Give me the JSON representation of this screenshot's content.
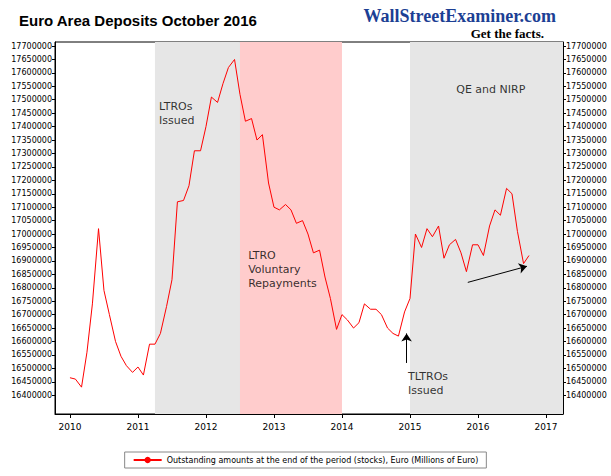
{
  "chart_data": {
    "type": "line",
    "title": "Euro Area Deposits October 2016",
    "logo_text": "WallStreetExaminer.com",
    "logo_tagline": "Get the facts.",
    "x": [
      2010.0,
      2010.08,
      2010.17,
      2010.25,
      2010.33,
      2010.42,
      2010.5,
      2010.58,
      2010.67,
      2010.75,
      2010.83,
      2010.92,
      2011.0,
      2011.08,
      2011.17,
      2011.25,
      2011.33,
      2011.42,
      2011.5,
      2011.58,
      2011.67,
      2011.75,
      2011.83,
      2011.92,
      2012.0,
      2012.08,
      2012.17,
      2012.25,
      2012.33,
      2012.42,
      2012.5,
      2012.58,
      2012.67,
      2012.75,
      2012.83,
      2012.92,
      2013.0,
      2013.08,
      2013.17,
      2013.25,
      2013.33,
      2013.42,
      2013.5,
      2013.58,
      2013.67,
      2013.75,
      2013.83,
      2013.92,
      2014.0,
      2014.08,
      2014.17,
      2014.25,
      2014.33,
      2014.42,
      2014.5,
      2014.58,
      2014.67,
      2014.75,
      2014.83,
      2014.92,
      2015.0,
      2015.08,
      2015.17,
      2015.25,
      2015.33,
      2015.42,
      2015.5,
      2015.58,
      2015.67,
      2015.75,
      2015.83,
      2015.92,
      2016.0,
      2016.08,
      2016.17,
      2016.25,
      2016.33,
      2016.42,
      2016.5,
      2016.58,
      2016.67,
      2016.75
    ],
    "series": [
      {
        "name": "Outstanding amounts at the end of the period (stocks), Euro (Millions of Euro)",
        "color": "#ff0000",
        "values": [
          16465000,
          16460000,
          16430000,
          16560000,
          16740000,
          17020000,
          16790000,
          16700000,
          16600000,
          16545000,
          16510000,
          16485000,
          16505000,
          16475000,
          16590000,
          16590000,
          16630000,
          16730000,
          16830000,
          17120000,
          17125000,
          17180000,
          17310000,
          17310000,
          17400000,
          17510000,
          17490000,
          17560000,
          17620000,
          17650000,
          17520000,
          17420000,
          17430000,
          17350000,
          17370000,
          17190000,
          17100000,
          17090000,
          17110000,
          17090000,
          17040000,
          17050000,
          17000000,
          16930000,
          16940000,
          16840000,
          16760000,
          16645000,
          16700000,
          16680000,
          16650000,
          16670000,
          16740000,
          16720000,
          16720000,
          16700000,
          16650000,
          16630000,
          16620000,
          16710000,
          16760000,
          17000000,
          16950000,
          17020000,
          16990000,
          17030000,
          16910000,
          16960000,
          16980000,
          16930000,
          16860000,
          16960000,
          16960000,
          16920000,
          17030000,
          17090000,
          17070000,
          17170000,
          17150000,
          17010000,
          16890000,
          16920000
        ]
      }
    ],
    "xlim": [
      2009.78,
      2017.25
    ],
    "xticks": [
      2010,
      2011,
      2012,
      2013,
      2014,
      2015,
      2016,
      2017
    ],
    "ylim": [
      16330000,
      17715000
    ],
    "yticks": [
      16400000,
      16450000,
      16500000,
      16550000,
      16600000,
      16650000,
      16700000,
      16750000,
      16800000,
      16850000,
      16900000,
      16950000,
      17000000,
      17050000,
      17100000,
      17150000,
      17200000,
      17250000,
      17300000,
      17350000,
      17400000,
      17450000,
      17500000,
      17550000,
      17600000,
      17650000,
      17700000
    ],
    "grid": false,
    "legend": "bottom",
    "regions": [
      {
        "from": 2011.25,
        "to": 2012.5,
        "color": "#e6e6e6"
      },
      {
        "from": 2012.5,
        "to": 2014.0,
        "color": "#ffcccc"
      },
      {
        "from": 2015.0,
        "to": 2017.25,
        "color": "#e6e6e6"
      }
    ],
    "annotations": [
      {
        "text": "LTROs\nIssued",
        "x": 2011.31,
        "y": 17500000
      },
      {
        "text": "LTRO\nVoluntary\nRepayments",
        "x": 2012.62,
        "y": 16945000
      },
      {
        "text": "QE and NIRP",
        "x": 2015.68,
        "y": 17565000
      },
      {
        "text": "TLTROs\nIssued",
        "x": 2014.97,
        "y": 16495000
      }
    ],
    "arrows": [
      {
        "from": [
          2014.95,
          16520000
        ],
        "to": [
          2014.95,
          16630000
        ]
      },
      {
        "from": [
          2015.85,
          16820000
        ],
        "to": [
          2016.72,
          16880000
        ]
      }
    ]
  }
}
